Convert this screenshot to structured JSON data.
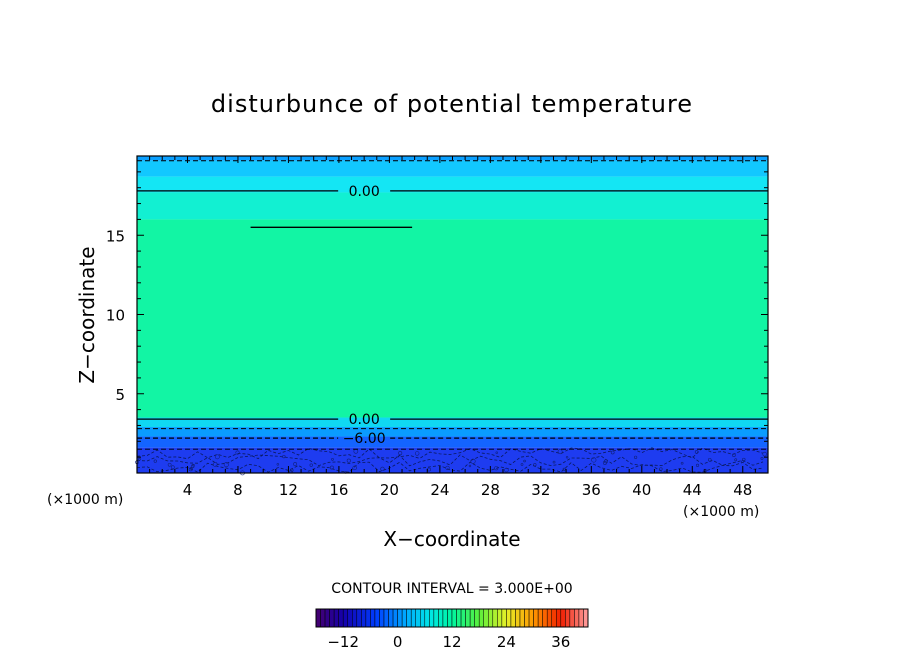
{
  "chart_data": {
    "type": "heatmap",
    "title": "disturbunce of potential temperature",
    "xlabel": "X−coordinate",
    "ylabel": "Z−coordinate",
    "x_unit_left": "(×1000 m)",
    "x_unit_right": "(×1000 m)",
    "xlim": [
      0,
      50
    ],
    "ylim": [
      0,
      20
    ],
    "x_ticks": [
      {
        "value": 4,
        "label": "4"
      },
      {
        "value": 8,
        "label": "8"
      },
      {
        "value": 12,
        "label": "12"
      },
      {
        "value": 16,
        "label": "16"
      },
      {
        "value": 20,
        "label": "20"
      },
      {
        "value": 24,
        "label": "24"
      },
      {
        "value": 28,
        "label": "28"
      },
      {
        "value": 32,
        "label": "32"
      },
      {
        "value": 36,
        "label": "36"
      },
      {
        "value": 40,
        "label": "40"
      },
      {
        "value": 44,
        "label": "44"
      },
      {
        "value": 48,
        "label": "48"
      }
    ],
    "y_ticks": [
      {
        "value": 5,
        "label": "5"
      },
      {
        "value": 10,
        "label": "10"
      },
      {
        "value": 15,
        "label": "15"
      }
    ],
    "contour_interval_text": "CONTOUR INTERVAL = 3.000E+00",
    "bands": [
      {
        "z0": 19.7,
        "z1": 20.0,
        "color": "#0aa0ff"
      },
      {
        "z0": 18.7,
        "z1": 19.7,
        "color": "#12c8ff"
      },
      {
        "z0": 17.7,
        "z1": 18.7,
        "color": "#14e6f4"
      },
      {
        "z0": 16.0,
        "z1": 17.7,
        "color": "#12f0d2"
      },
      {
        "z0": 3.5,
        "z1": 16.0,
        "color": "#12f5a4"
      },
      {
        "z0": 2.9,
        "z1": 3.5,
        "color": "#10d8f2"
      },
      {
        "z0": 2.3,
        "z1": 2.9,
        "color": "#0a9cff"
      },
      {
        "z0": 1.6,
        "z1": 2.3,
        "color": "#1464ff"
      },
      {
        "z0": 0.0,
        "z1": 1.6,
        "color": "#1e3cf0"
      }
    ],
    "contours": [
      {
        "z": 17.8,
        "value": 0.0,
        "label": "0.00",
        "label_x": 18.0,
        "style": "solid"
      },
      {
        "z": 3.4,
        "value": 0.0,
        "label": "0.00",
        "label_x": 18.0,
        "style": "solid"
      },
      {
        "z": 2.2,
        "value": -6.0,
        "label": "−6.00",
        "label_x": 18.0,
        "style": "dashed"
      },
      {
        "z": 19.7,
        "value": -3.0,
        "label": "",
        "label_x": 0,
        "style": "dashed"
      },
      {
        "z": 2.8,
        "value": -3.0,
        "label": "",
        "label_x": 0,
        "style": "dashed"
      },
      {
        "z": 1.5,
        "value": -9.0,
        "label": "",
        "label_x": 0,
        "style": "dashed"
      }
    ],
    "feature_line": {
      "x0": 9.0,
      "x1": 21.8,
      "z": 15.5
    },
    "colorbar": {
      "vmin": -18,
      "vmax": 42,
      "ticks": [
        {
          "value": -12,
          "label": "−12"
        },
        {
          "value": 0,
          "label": "0"
        },
        {
          "value": 12,
          "label": "12"
        },
        {
          "value": 24,
          "label": "24"
        },
        {
          "value": 36,
          "label": "36"
        }
      ]
    }
  }
}
